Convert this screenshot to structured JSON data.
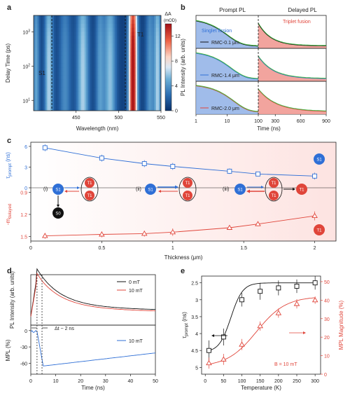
{
  "colors": {
    "blue": "#2f6fd6",
    "red": "#e0453a",
    "black": "#111111",
    "blue_fill": "#8fb0e6",
    "red_fill": "#f19a94",
    "green_fit": "#49b84a",
    "bg_gradient_red": "#fde3e1"
  },
  "panel_labels": {
    "a": "a",
    "b": "b",
    "c": "c",
    "d": "d",
    "e": "e"
  },
  "chart_data": [
    {
      "id": "a",
      "type": "heatmap",
      "xlabel": "Wavelength (nm)",
      "ylabel": "Delay Time (ps)",
      "xlim": [
        400,
        550
      ],
      "ylim": [
        5,
        3000
      ],
      "yscale": "log",
      "xticks": [
        450,
        500,
        550
      ],
      "yticks": [
        "10^1",
        "10^2",
        "10^3"
      ],
      "colorbar": {
        "title": "ΔA",
        "unit": "(mOD)",
        "ticks": [
          0,
          4,
          8,
          12
        ],
        "range": [
          0,
          14
        ]
      },
      "annotations": [
        {
          "text": "S1",
          "x": 441
        },
        {
          "text": "T1",
          "x": 517
        }
      ],
      "dashed_lines_x": [
        441,
        517
      ],
      "bands": [
        {
          "center": 403,
          "width": 4,
          "amp": 4.0
        },
        {
          "center": 418,
          "width": 5,
          "amp": 5.6
        },
        {
          "center": 437,
          "width": 7,
          "amp": 3.0
        },
        {
          "center": 458,
          "width": 7,
          "amp": 5.5
        },
        {
          "center": 478,
          "width": 5,
          "amp": 3.5
        },
        {
          "center": 490,
          "width": 7,
          "amp": 5.0
        },
        {
          "center": 517,
          "width": 5,
          "amp": 14.0
        },
        {
          "center": 537,
          "width": 5,
          "amp": 3.5
        },
        {
          "center": 546,
          "width": 4,
          "amp": 5.5
        }
      ]
    },
    {
      "id": "b",
      "type": "area",
      "titles": [
        "Prompt PL",
        "Delayed PL"
      ],
      "ylabel": "PL Intensity (arb. units)",
      "xlabel": "Time (ns)",
      "xticks_left": [
        1,
        10,
        100
      ],
      "xticks_right": [
        300,
        600,
        900
      ],
      "fill_labels": [
        "Singlet fission",
        "Triplet fusion"
      ],
      "series": [
        {
          "name": "RMC-0.1 μm",
          "color": "#111111"
        },
        {
          "name": "RMC-1.4 μm",
          "color": "#2f6fd6"
        },
        {
          "name": "RMC-2.0 μm",
          "color": "#e0453a"
        }
      ]
    },
    {
      "id": "c",
      "type": "line",
      "xlabel": "Thickness (μm)",
      "xlim": [
        0,
        2.15
      ],
      "xticks": [
        0,
        0.5,
        1,
        1.5,
        2
      ],
      "top": {
        "ylabel": "τprompt (ns)",
        "ylim": [
          0,
          6.6
        ],
        "yticks": [
          0,
          3,
          6
        ],
        "color": "#2f6fd6",
        "x": [
          0.1,
          0.5,
          0.8,
          1.0,
          1.4,
          1.6,
          2.0
        ],
        "y": [
          5.8,
          4.3,
          3.5,
          3.1,
          2.4,
          2.0,
          1.7
        ],
        "err": [
          0.5,
          0.5,
          0.5,
          0.5,
          0.4,
          0.3,
          0.5
        ]
      },
      "bottom": {
        "ylabel": "-m delayed",
        "ylim": [
          1.56,
          0.84
        ],
        "yticks": [
          0.9,
          1.2,
          1.5
        ],
        "color": "#e0453a",
        "x": [
          0.1,
          0.5,
          0.8,
          1.0,
          1.4,
          1.6,
          2.0
        ],
        "y": [
          1.49,
          1.47,
          1.46,
          1.44,
          1.38,
          1.33,
          1.22
        ],
        "err": [
          0.04,
          0.04,
          0.04,
          0.05,
          0.03,
          0.03,
          0.06
        ]
      },
      "schemes": [
        "(i)",
        "(ii)",
        "(iii)"
      ],
      "state_labels": {
        "S1": "S1",
        "T1": "T1",
        "S0": "S0"
      }
    },
    {
      "id": "d",
      "type": "line",
      "xlabel": "Time (ns)",
      "xlim": [
        0,
        50
      ],
      "xticks": [
        0,
        10,
        20,
        30,
        40,
        50
      ],
      "top": {
        "ylabel": "PL Intensity (arb. units)",
        "series": [
          {
            "name": "0 mT",
            "color": "#111111"
          },
          {
            "name": "10 mT",
            "color": "#e0453a"
          }
        ]
      },
      "bottom": {
        "ylabel": "MPL (%)",
        "ylim": [
          -80,
          10
        ],
        "yticks": [
          0,
          -30,
          -60
        ],
        "series": [
          {
            "name": "10 mT",
            "color": "#2f6fd6"
          }
        ]
      },
      "annotation": "Δt ~ 2 ns",
      "dashed_lines_x": [
        2.5,
        4.5
      ]
    },
    {
      "id": "e",
      "type": "scatter",
      "xlabel": "Temperature (K)",
      "xlim": [
        -10,
        315
      ],
      "xticks": [
        0,
        50,
        100,
        150,
        200,
        250,
        300
      ],
      "left": {
        "ylabel": "τprompt (ns)",
        "ylim": [
          5.2,
          2.3
        ],
        "yticks": [
          2.5,
          3,
          3.5,
          4,
          4.5,
          5
        ],
        "color": "#111111",
        "x": [
          10,
          50,
          100,
          150,
          200,
          250,
          300
        ],
        "y": [
          4.5,
          4.1,
          3.0,
          2.75,
          2.65,
          2.6,
          2.5
        ],
        "err": [
          0.3,
          0.25,
          0.2,
          0.25,
          0.22,
          0.2,
          0.2
        ]
      },
      "right": {
        "ylabel": "MPL Magnitude (%)",
        "ylim": [
          0,
          53
        ],
        "yticks": [
          0,
          10,
          20,
          30,
          40,
          50
        ],
        "color": "#e0453a",
        "x": [
          10,
          50,
          100,
          150,
          200,
          250,
          300
        ],
        "y": [
          6,
          8,
          16,
          26,
          33,
          38,
          40
        ],
        "err": [
          3,
          3,
          3,
          2.5,
          2.5,
          2.5,
          2
        ]
      },
      "annotation": "B = 10 mT"
    }
  ]
}
